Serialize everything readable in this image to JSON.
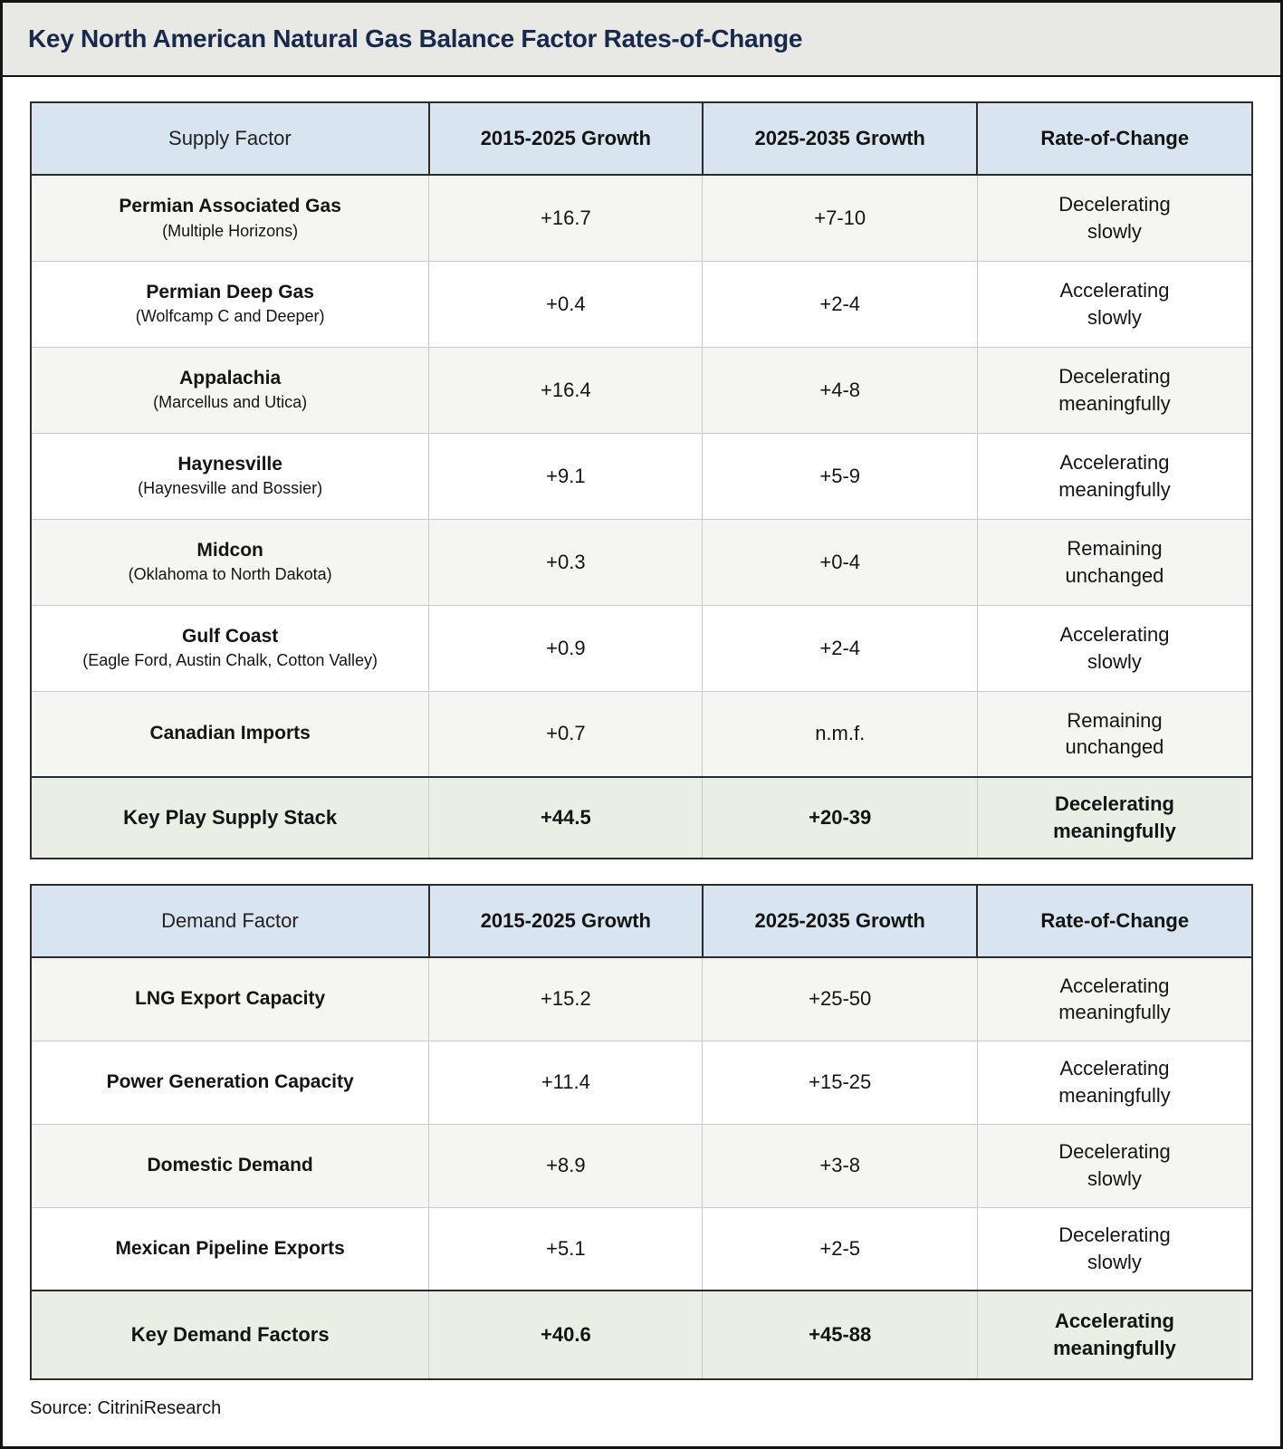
{
  "title": "Key North American Natural Gas Balance Factor Rates-of-Change",
  "source": "Source: CitriniResearch",
  "colors": {
    "title_bar_bg": "#e8e8e5",
    "title_text": "#172a4d",
    "header_bg": "#d8e4f0",
    "row_alt_bg": "#f5f5f3",
    "summary_bg": "#e9efe5",
    "summary_negative_text": "#9b1b26",
    "summary_positive_text": "#4b7a3f",
    "muted_value_text": "#bcbcbc"
  },
  "chart_data": [
    {
      "type": "table",
      "name": "supply",
      "headers": [
        "Supply Factor",
        "2015-2025 Growth",
        "2025-2035 Growth",
        "Rate-of-Change"
      ],
      "rows": [
        {
          "factor": "Permian Associated Gas",
          "detail": "(Multiple Horizons)",
          "growth_2015_2025": "+16.7",
          "growth_2025_2035": "+7-10",
          "rate_of_change": "Decelerating\nslowly"
        },
        {
          "factor": "Permian Deep Gas",
          "detail": "(Wolfcamp C and Deeper)",
          "growth_2015_2025": "+0.4",
          "growth_2025_2035": "+2-4",
          "rate_of_change": "Accelerating\nslowly"
        },
        {
          "factor": "Appalachia",
          "detail": "(Marcellus and Utica)",
          "growth_2015_2025": "+16.4",
          "growth_2025_2035": "+4-8",
          "rate_of_change": "Decelerating\nmeaningfully"
        },
        {
          "factor": "Haynesville",
          "detail": "(Haynesville and Bossier)",
          "growth_2015_2025": "+9.1",
          "growth_2025_2035": "+5-9",
          "rate_of_change": "Accelerating\nmeaningfully"
        },
        {
          "factor": "Midcon",
          "detail": "(Oklahoma to North Dakota)",
          "growth_2015_2025": "+0.3",
          "growth_2025_2035": "+0-4",
          "rate_of_change": "Remaining\nunchanged"
        },
        {
          "factor": "Gulf Coast",
          "detail": "(Eagle Ford, Austin Chalk, Cotton Valley)",
          "growth_2015_2025": "+0.9",
          "growth_2025_2035": "+2-4",
          "rate_of_change": "Accelerating\nslowly"
        },
        {
          "factor": "Canadian Imports",
          "growth_2015_2025": "+0.7",
          "growth_2025_2035": "n.m.f.",
          "rate_of_change": "Remaining\nunchanged"
        }
      ],
      "summary": {
        "factor": "Key Play Supply Stack",
        "growth_2015_2025": "+44.5",
        "growth_2025_2035": "+20-39",
        "rate_of_change": "Decelerating\nmeaningfully",
        "rate_color": "#9b1b26"
      }
    },
    {
      "type": "table",
      "name": "demand",
      "headers": [
        "Demand Factor",
        "2015-2025 Growth",
        "2025-2035 Growth",
        "Rate-of-Change"
      ],
      "rows": [
        {
          "factor": "LNG Export Capacity",
          "growth_2015_2025": "+15.2",
          "growth_2025_2035": "+25-50",
          "rate_of_change": "Accelerating\nmeaningfully"
        },
        {
          "factor": "Power Generation Capacity",
          "growth_2015_2025": "+11.4",
          "growth_2025_2035": "+15-25",
          "rate_of_change": "Accelerating\nmeaningfully"
        },
        {
          "factor": "Domestic Demand",
          "growth_2015_2025": "+8.9",
          "growth_2025_2035": "+3-8",
          "rate_of_change": "Decelerating\nslowly"
        },
        {
          "factor": "Mexican Pipeline Exports",
          "growth_2015_2025": "+5.1",
          "growth_2025_2035": "+2-5",
          "rate_of_change": "Decelerating\nslowly"
        }
      ],
      "summary": {
        "factor": "Key Demand Factors",
        "growth_2015_2025": "+40.6",
        "growth_2025_2035": "+45-88",
        "rate_of_change": "Accelerating\nmeaningfully",
        "rate_color": "#4b7a3f"
      }
    }
  ]
}
